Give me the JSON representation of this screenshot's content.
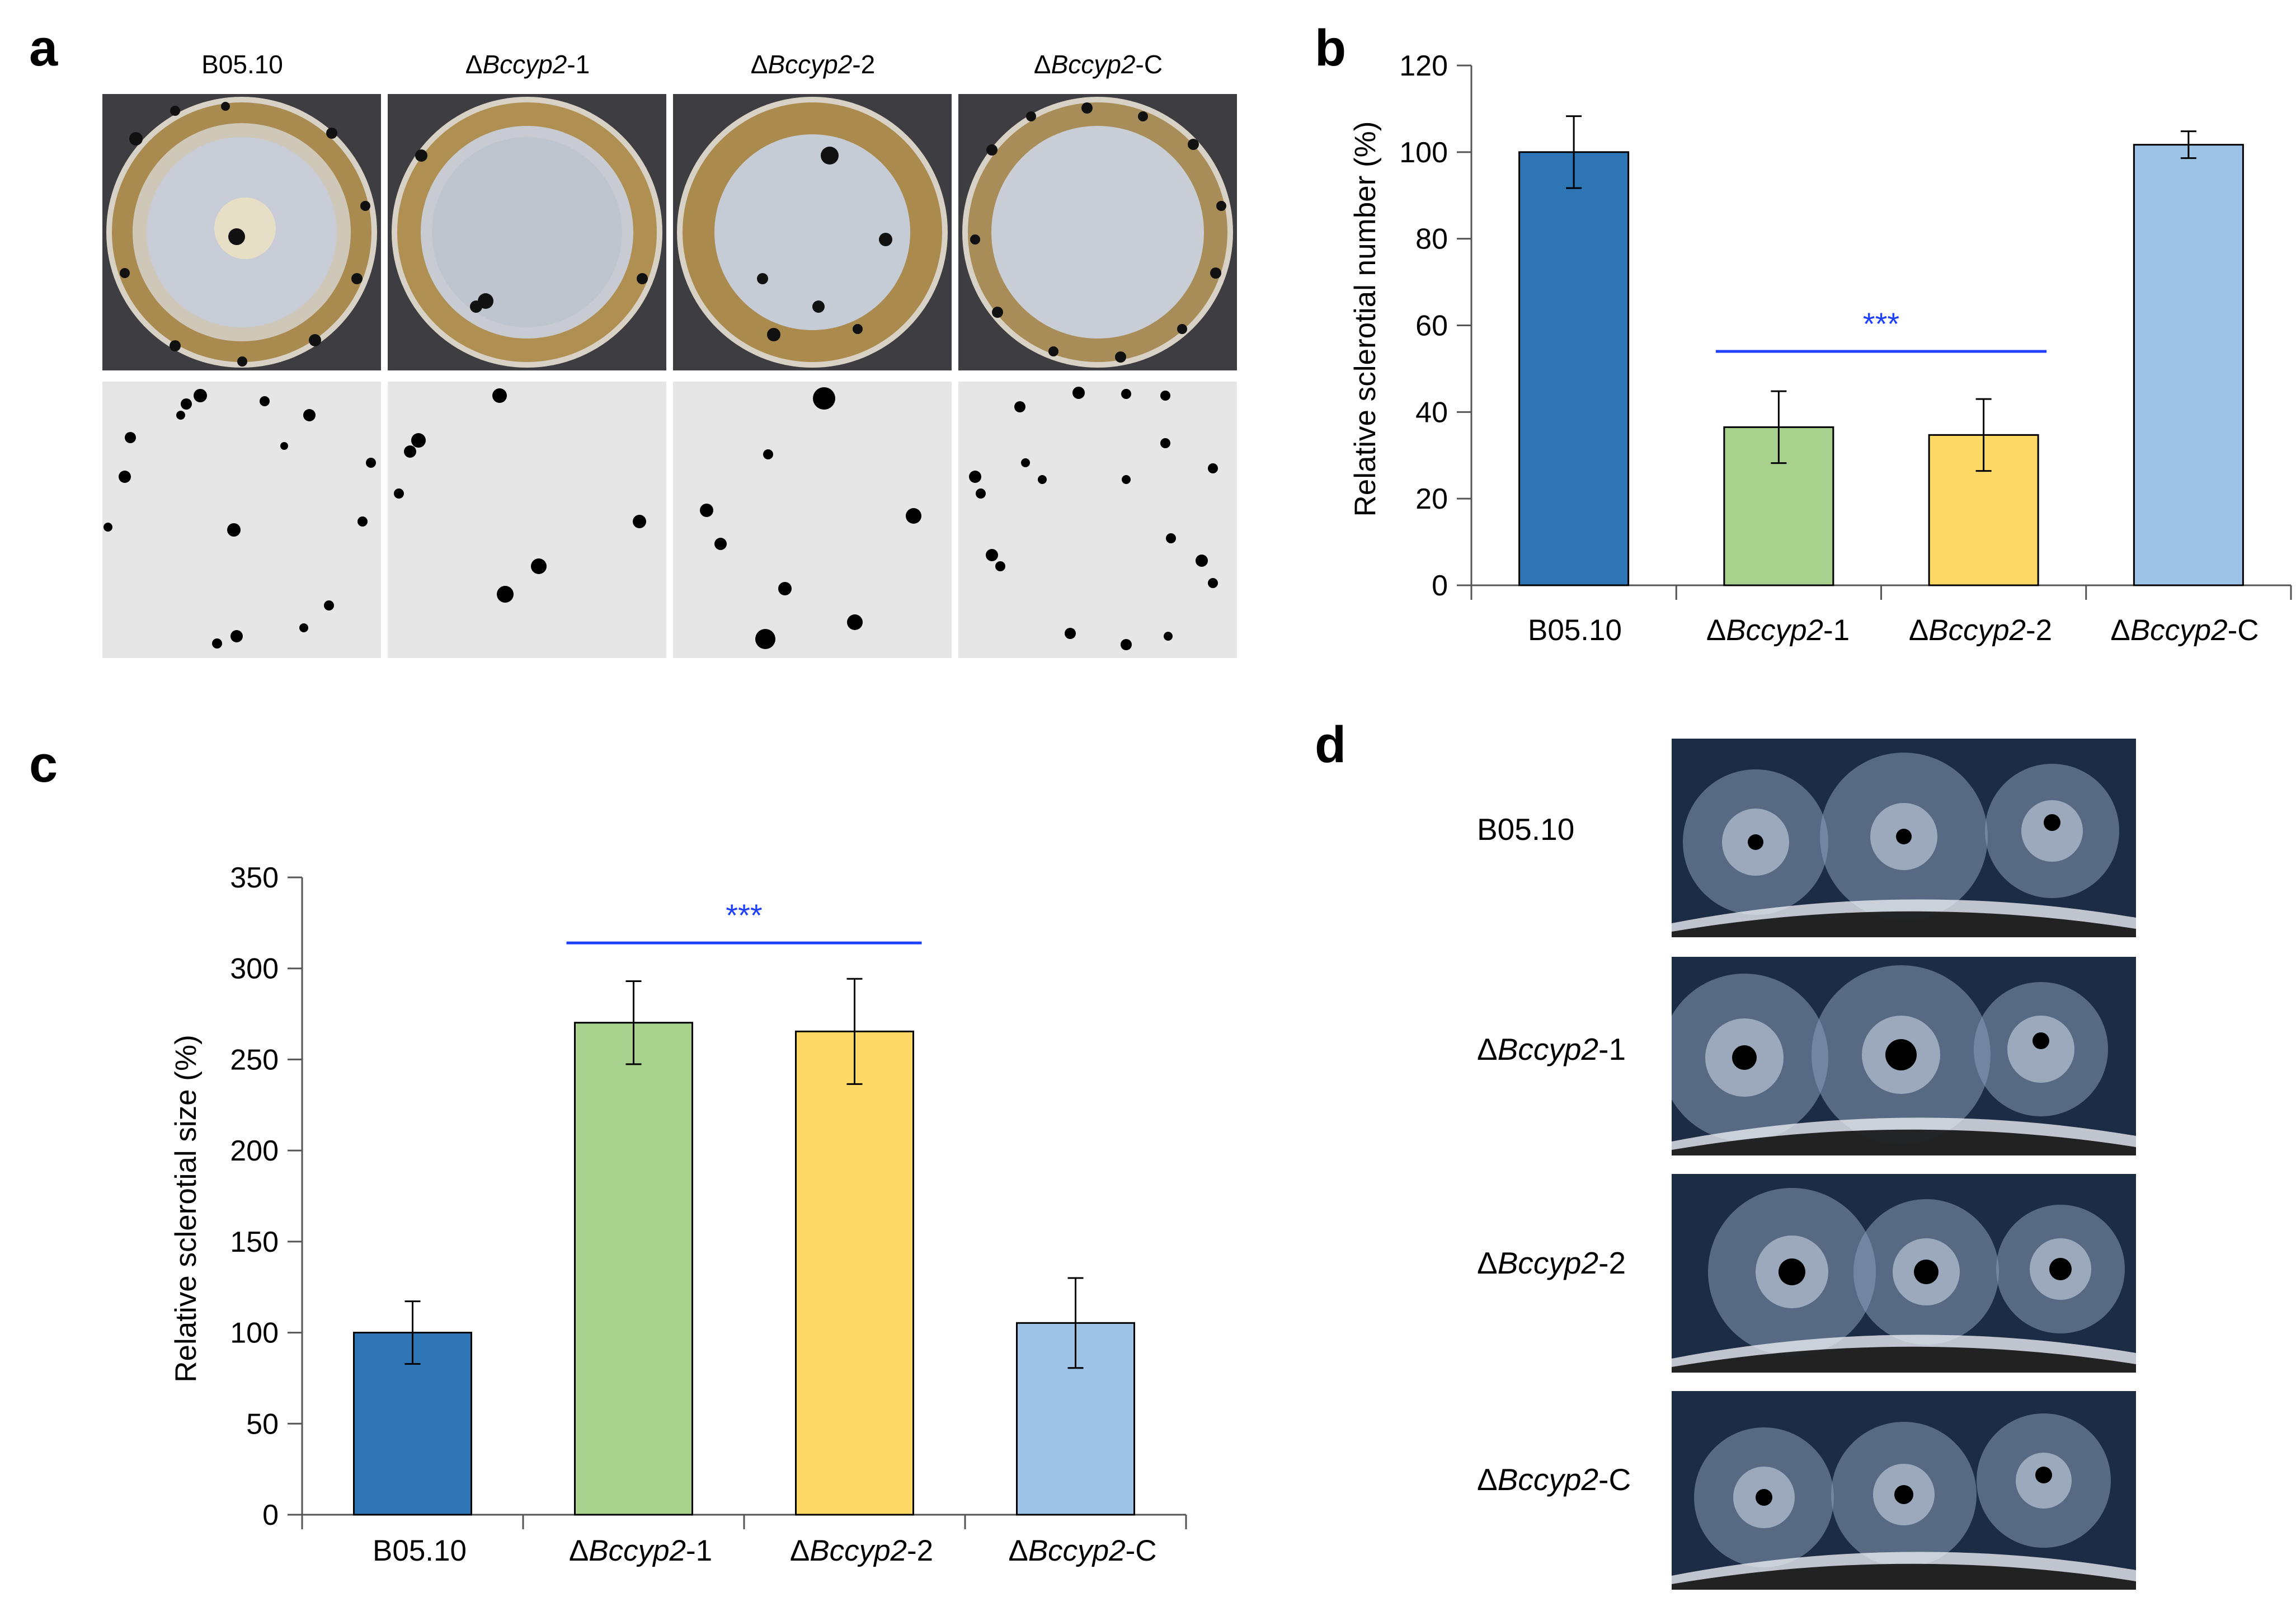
{
  "panels": {
    "a": {
      "letter": "a",
      "strains": [
        {
          "prefix": "",
          "italic": "",
          "suffix": "B05.10"
        },
        {
          "prefix": "Δ",
          "italic": "Bccyp2",
          "suffix": "-1"
        },
        {
          "prefix": "Δ",
          "italic": "Bccyp2",
          "suffix": "-2"
        },
        {
          "prefix": "Δ",
          "italic": "Bccyp2",
          "suffix": "-C"
        }
      ]
    },
    "b": {
      "letter": "b"
    },
    "c": {
      "letter": "c"
    },
    "d": {
      "letter": "d",
      "rows": [
        {
          "prefix": "",
          "italic": "",
          "suffix": "B05.10"
        },
        {
          "prefix": "Δ",
          "italic": "Bccyp2",
          "suffix": "-1"
        },
        {
          "prefix": "Δ",
          "italic": "Bccyp2",
          "suffix": "-2"
        },
        {
          "prefix": "Δ",
          "italic": "Bccyp2",
          "suffix": "-C"
        }
      ]
    }
  },
  "colors": {
    "B05.10": "#2e75b6",
    "dBccyp2-1": "#a9d18e",
    "dBccyp2-2": "#ffd966",
    "dBccyp2-C": "#9dc3e6",
    "significance": "#1f3fff"
  },
  "chart_data": [
    {
      "panel": "b",
      "type": "bar",
      "title": "",
      "xlabel": "",
      "ylabel": "Relative sclerotial number (%)",
      "categories": [
        {
          "prefix": "",
          "italic": "",
          "suffix": "B05.10"
        },
        {
          "prefix": "Δ",
          "italic": "Bccyp2",
          "suffix": "-1"
        },
        {
          "prefix": "Δ",
          "italic": "Bccyp2",
          "suffix": "-2"
        },
        {
          "prefix": "Δ",
          "italic": "Bccyp2",
          "suffix": "-C"
        }
      ],
      "values": [
        100,
        36.5,
        34.7,
        101.7
      ],
      "errors": [
        8.3,
        8.3,
        8.3,
        3.1
      ],
      "ylim": [
        0,
        120
      ],
      "yticks": [
        "0",
        "20",
        "40",
        "60",
        "80",
        "100",
        "120"
      ],
      "significance": {
        "label": "***",
        "from": 1,
        "to": 2,
        "y": 54
      }
    },
    {
      "panel": "c",
      "type": "bar",
      "title": "",
      "xlabel": "",
      "ylabel": "Relative sclerotial size (%)",
      "categories": [
        {
          "prefix": "",
          "italic": "",
          "suffix": "B05.10"
        },
        {
          "prefix": "Δ",
          "italic": "Bccyp2",
          "suffix": "-1"
        },
        {
          "prefix": "Δ",
          "italic": "Bccyp2",
          "suffix": "-2"
        },
        {
          "prefix": "Δ",
          "italic": "Bccyp2",
          "suffix": "-C"
        }
      ],
      "values": [
        100,
        270.2,
        265.4,
        105.3
      ],
      "errors": [
        17.2,
        22.8,
        28.9,
        24.7
      ],
      "ylim": [
        0,
        350
      ],
      "yticks": [
        "0",
        "50",
        "100",
        "150",
        "200",
        "250",
        "300",
        "350"
      ],
      "significance": {
        "label": "***",
        "from": 1,
        "to": 2,
        "y": 314
      }
    }
  ]
}
